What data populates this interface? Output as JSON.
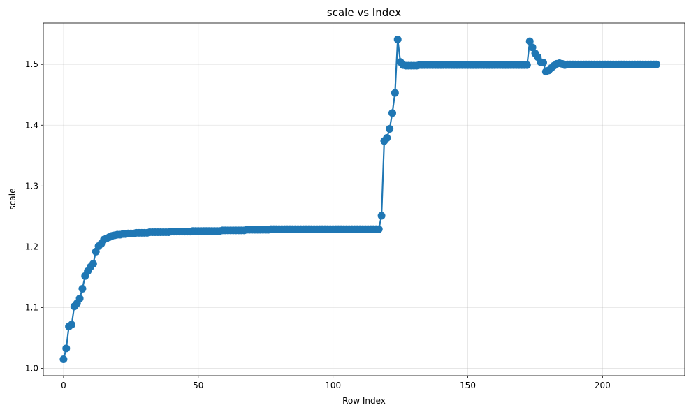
{
  "chart_data": {
    "type": "line",
    "title": "scale vs Index",
    "xlabel": "Row Index",
    "ylabel": "scale",
    "xlim": [
      -7.5,
      230.5
    ],
    "ylim": [
      0.988,
      1.568
    ],
    "xticks": [
      0,
      50,
      100,
      150,
      200
    ],
    "yticks": [
      1.0,
      1.1,
      1.2,
      1.3,
      1.4,
      1.5
    ],
    "grid": true,
    "color": "#1f77b4",
    "markers": true,
    "series": [
      {
        "values": [
          1.015,
          1.033,
          1.069,
          1.072,
          1.102,
          1.107,
          1.115,
          1.131,
          1.152,
          1.16,
          1.167,
          1.172,
          1.192,
          1.201,
          1.205,
          1.212,
          1.214,
          1.216,
          1.218,
          1.219,
          1.22,
          1.22,
          1.221,
          1.221,
          1.222,
          1.222,
          1.222,
          1.223,
          1.223,
          1.223,
          1.223,
          1.223,
          1.224,
          1.224,
          1.224,
          1.224,
          1.224,
          1.224,
          1.224,
          1.224,
          1.225,
          1.225,
          1.225,
          1.225,
          1.225,
          1.225,
          1.225,
          1.225,
          1.226,
          1.226,
          1.226,
          1.226,
          1.226,
          1.226,
          1.226,
          1.226,
          1.226,
          1.226,
          1.226,
          1.227,
          1.227,
          1.227,
          1.227,
          1.227,
          1.227,
          1.227,
          1.227,
          1.227,
          1.228,
          1.228,
          1.228,
          1.228,
          1.228,
          1.228,
          1.228,
          1.228,
          1.228,
          1.229,
          1.229,
          1.229,
          1.229,
          1.229,
          1.229,
          1.229,
          1.229,
          1.229,
          1.229,
          1.229,
          1.229,
          1.229,
          1.229,
          1.229,
          1.229,
          1.229,
          1.229,
          1.229,
          1.229,
          1.229,
          1.229,
          1.229,
          1.229,
          1.229,
          1.229,
          1.229,
          1.229,
          1.229,
          1.229,
          1.229,
          1.229,
          1.229,
          1.229,
          1.229,
          1.229,
          1.229,
          1.229,
          1.229,
          1.229,
          1.229,
          1.251,
          1.374,
          1.379,
          1.394,
          1.42,
          1.453,
          1.541,
          1.504,
          1.499,
          1.498,
          1.498,
          1.498,
          1.498,
          1.498,
          1.499,
          1.499,
          1.499,
          1.499,
          1.499,
          1.499,
          1.499,
          1.499,
          1.499,
          1.499,
          1.499,
          1.499,
          1.499,
          1.499,
          1.499,
          1.499,
          1.499,
          1.499,
          1.499,
          1.499,
          1.499,
          1.499,
          1.499,
          1.499,
          1.499,
          1.499,
          1.499,
          1.499,
          1.499,
          1.499,
          1.499,
          1.499,
          1.499,
          1.499,
          1.499,
          1.499,
          1.499,
          1.499,
          1.499,
          1.499,
          1.499,
          1.538,
          1.528,
          1.518,
          1.512,
          1.504,
          1.503,
          1.488,
          1.49,
          1.494,
          1.498,
          1.501,
          1.502,
          1.501,
          1.499,
          1.5,
          1.5,
          1.5,
          1.5,
          1.5,
          1.5,
          1.5,
          1.5,
          1.5,
          1.5,
          1.5,
          1.5,
          1.5,
          1.5,
          1.5,
          1.5,
          1.5,
          1.5,
          1.5,
          1.5,
          1.5,
          1.5,
          1.5,
          1.5,
          1.5,
          1.5,
          1.5,
          1.5,
          1.5,
          1.5,
          1.5,
          1.5,
          1.5,
          1.5
        ]
      }
    ]
  }
}
